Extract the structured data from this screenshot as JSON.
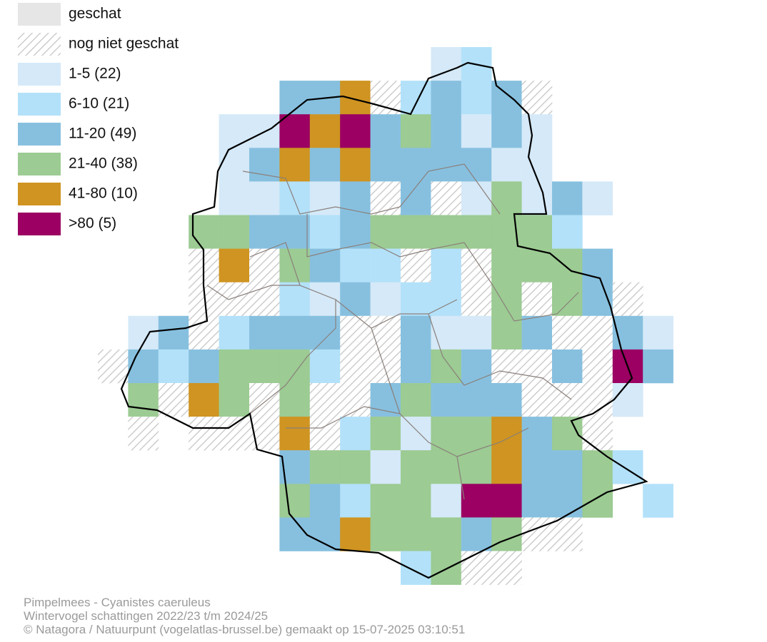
{
  "legend": [
    {
      "label": "geschat",
      "color": "#e6e6e6"
    },
    {
      "label": "nog niet geschat",
      "hatched": true
    },
    {
      "label": "1-5 (22)",
      "color": "#d5e9f8"
    },
    {
      "label": "6-10 (21)",
      "color": "#b3e1f9"
    },
    {
      "label": "11-20 (49)",
      "color": "#87c0df"
    },
    {
      "label": "21-40 (38)",
      "color": "#9ccb93"
    },
    {
      "label": "41-80 (10)",
      "color": "#cf9421"
    },
    {
      "label": ">80 (5)",
      "color": "#9b0062"
    }
  ],
  "footer": [
    "Pimpelmees - Cyanistes caeruleus",
    "Wintervogel schattingen 2022/23 t/m 2024/25",
    "© Natagora / Natuurpunt (vogelatlas-brussel.be) gemaakt op 15-07-2025 03:10:51"
  ]
}
